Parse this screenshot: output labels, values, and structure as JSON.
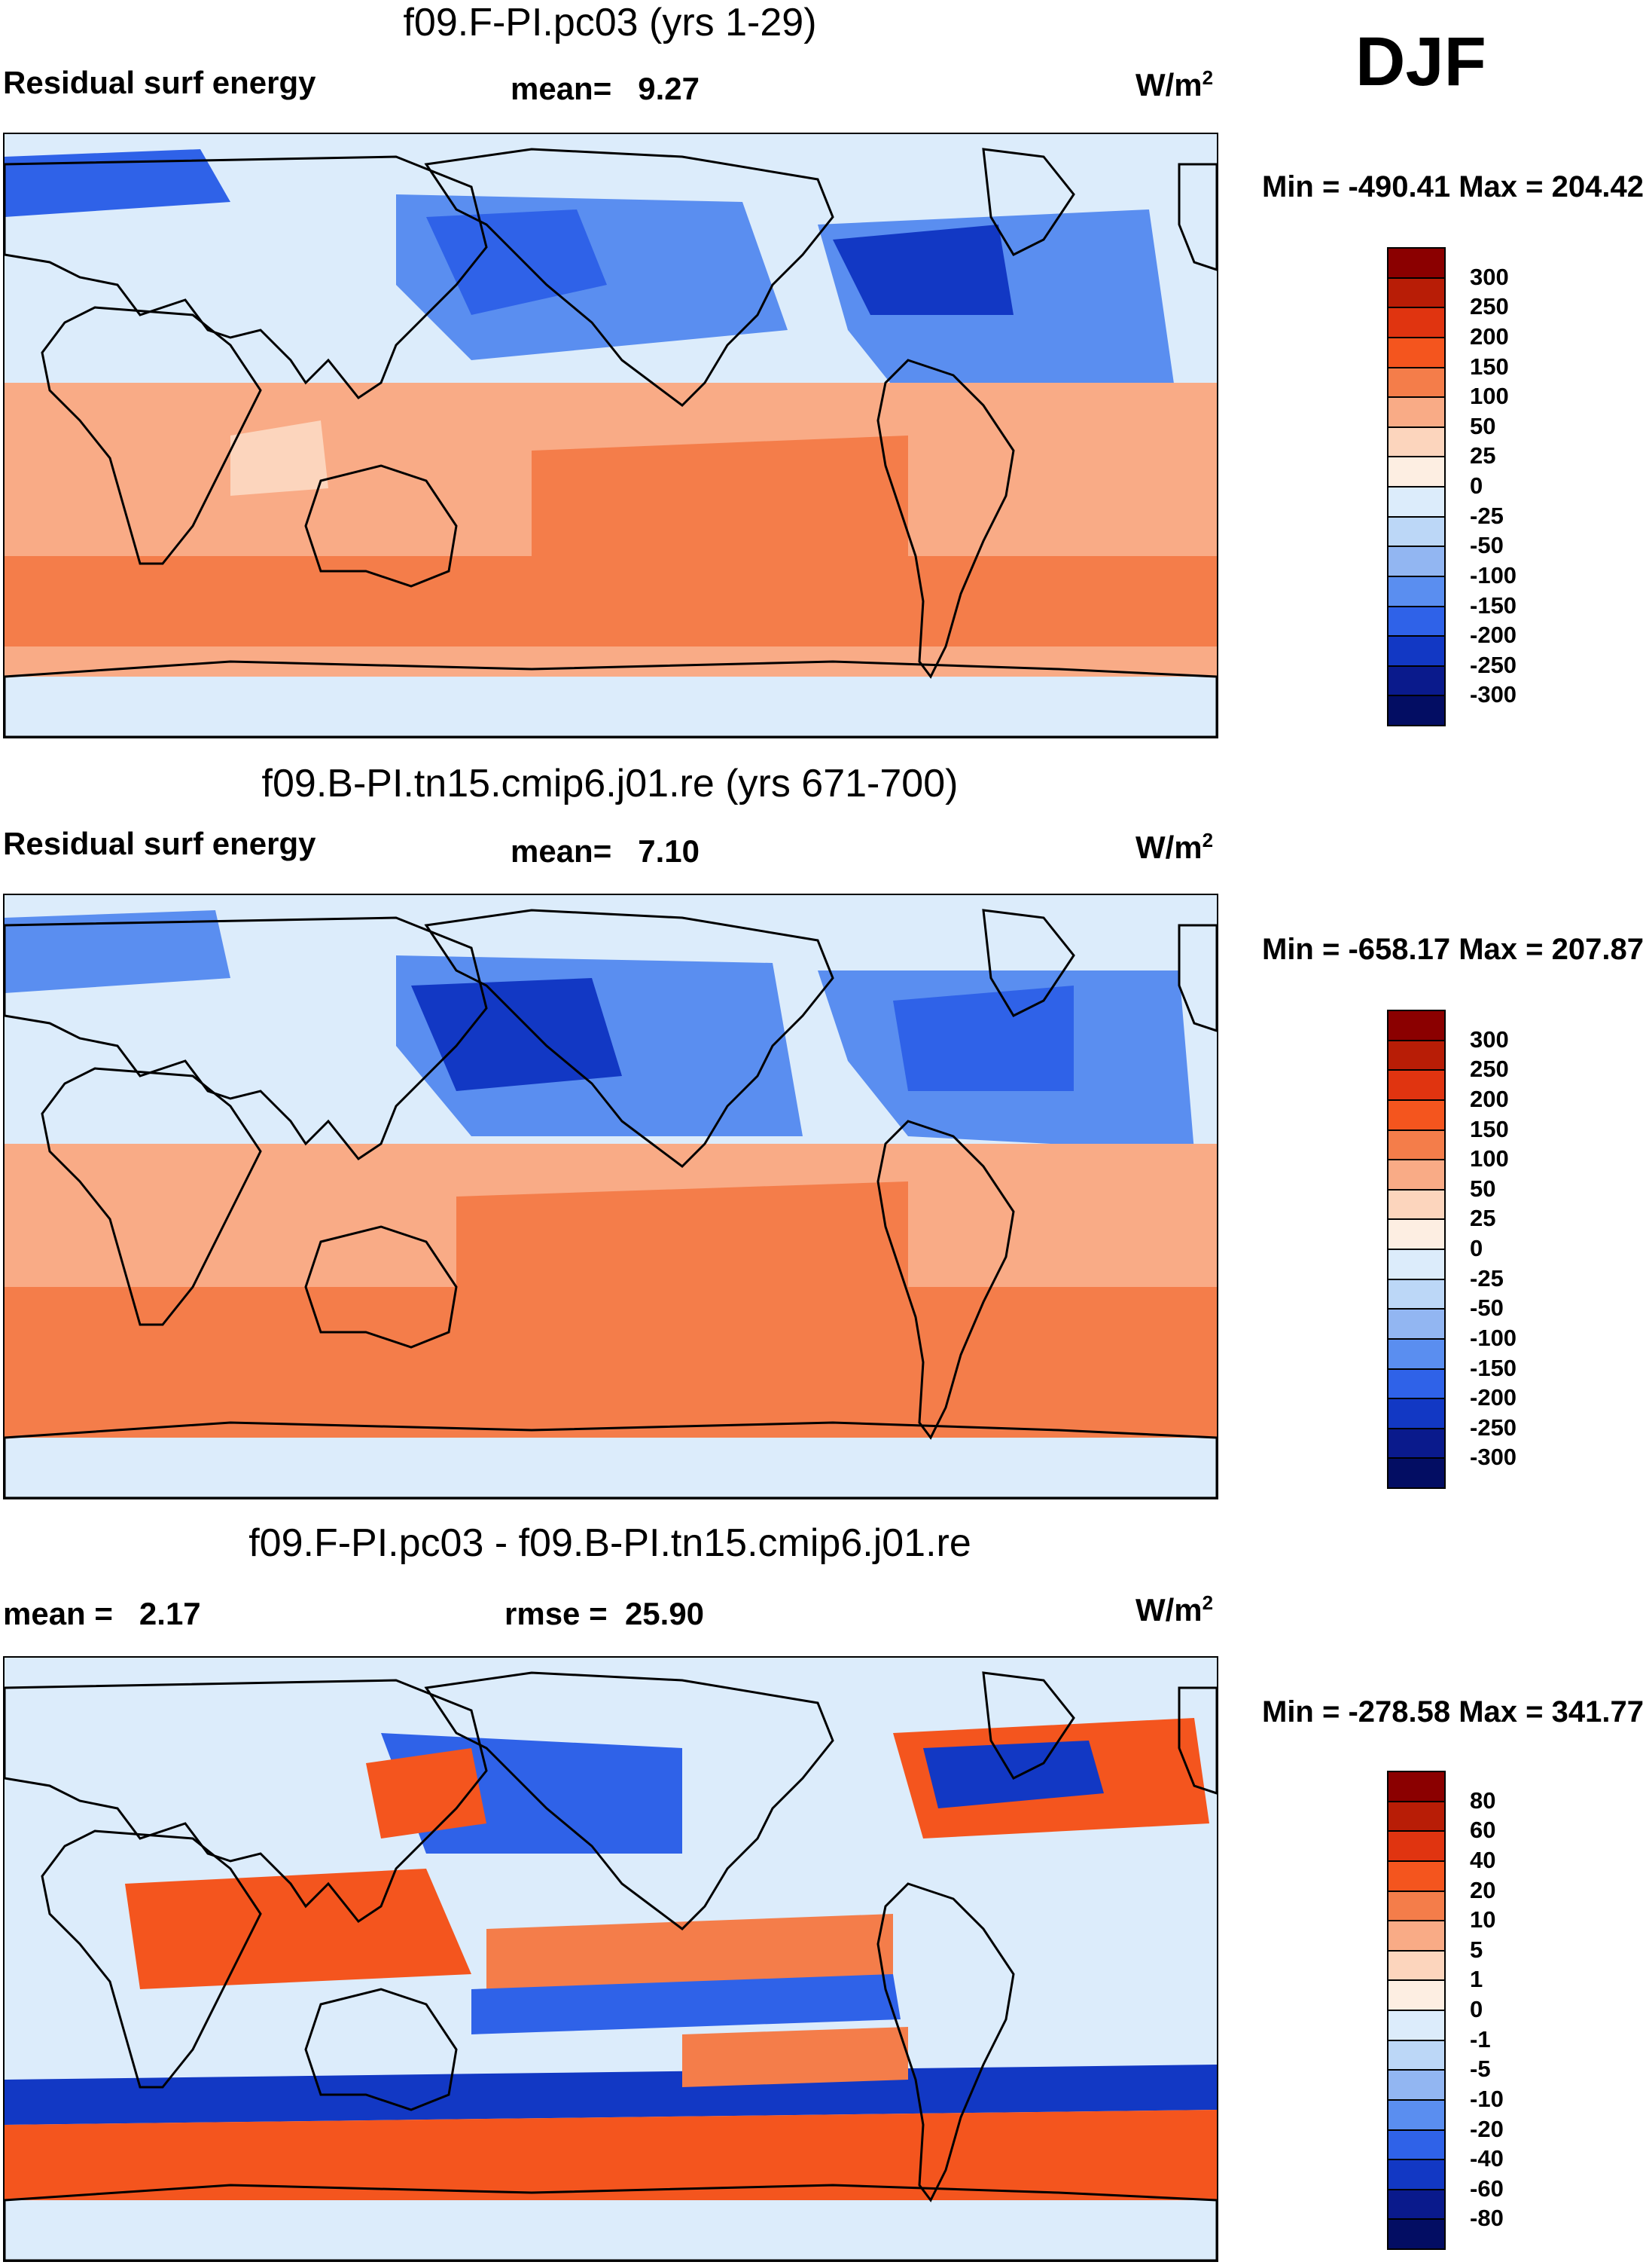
{
  "season": "DJF",
  "panels": [
    {
      "title": "f09.F-PI.pc03 (yrs 1-29)",
      "left_label": "Residual surf energy",
      "center_label": "mean=   9.27",
      "units": "W/m",
      "units_sup": "2",
      "minmax": "Min = -490.41 Max = 204.42",
      "levels": [
        "300",
        "250",
        "200",
        "150",
        "100",
        "50",
        "25",
        "0",
        "-25",
        "-50",
        "-100",
        "-150",
        "-200",
        "-250",
        "-300"
      ]
    },
    {
      "title": "f09.B-PI.tn15.cmip6.j01.re (yrs 671-700)",
      "left_label": "Residual surf energy",
      "center_label": "mean=   7.10",
      "units": "W/m",
      "units_sup": "2",
      "minmax": "Min = -658.17 Max = 207.87",
      "levels": [
        "300",
        "250",
        "200",
        "150",
        "100",
        "50",
        "25",
        "0",
        "-25",
        "-50",
        "-100",
        "-150",
        "-200",
        "-250",
        "-300"
      ]
    },
    {
      "title": "f09.F-PI.pc03 - f09.B-PI.tn15.cmip6.j01.re",
      "left_label": "mean =   2.17",
      "center_label": "rmse =  25.90",
      "units": "W/m",
      "units_sup": "2",
      "minmax": "Min = -278.58 Max = 341.77",
      "levels": [
        "80",
        "60",
        "40",
        "20",
        "10",
        "5",
        "1",
        "0",
        "-1",
        "-5",
        "-10",
        "-20",
        "-40",
        "-60",
        "-80"
      ]
    }
  ],
  "chart_data": [
    {
      "type": "heatmap",
      "title": "f09.F-PI.pc03 (yrs 1-29)",
      "variable": "Residual surf energy",
      "units": "W/m2",
      "mean": 9.27,
      "min": -490.41,
      "max": 204.42,
      "contour_levels": [
        300,
        250,
        200,
        150,
        100,
        50,
        25,
        0,
        -25,
        -50,
        -100,
        -150,
        -200,
        -250,
        -300
      ]
    },
    {
      "type": "heatmap",
      "title": "f09.B-PI.tn15.cmip6.j01.re (yrs 671-700)",
      "variable": "Residual surf energy",
      "units": "W/m2",
      "mean": 7.1,
      "min": -658.17,
      "max": 207.87,
      "contour_levels": [
        300,
        250,
        200,
        150,
        100,
        50,
        25,
        0,
        -25,
        -50,
        -100,
        -150,
        -200,
        -250,
        -300
      ]
    },
    {
      "type": "heatmap",
      "title": "f09.F-PI.pc03 - f09.B-PI.tn15.cmip6.j01.re",
      "units": "W/m2",
      "mean": 2.17,
      "rmse": 25.9,
      "min": -278.58,
      "max": 341.77,
      "contour_levels": [
        80,
        60,
        40,
        20,
        10,
        5,
        1,
        0,
        -1,
        -5,
        -10,
        -20,
        -40,
        -60,
        -80
      ]
    }
  ],
  "colors": {
    "scale": [
      "#8b0000",
      "#b81d06",
      "#e03410",
      "#f4551e",
      "#f47d4a",
      "#f9ab86",
      "#fcd5bd",
      "#fdeee2",
      "#dcecfb",
      "#bcd7f7",
      "#92b6f2",
      "#5a8ef0",
      "#2f62e8",
      "#1238c4",
      "#0a1a8c",
      "#030d63"
    ]
  }
}
